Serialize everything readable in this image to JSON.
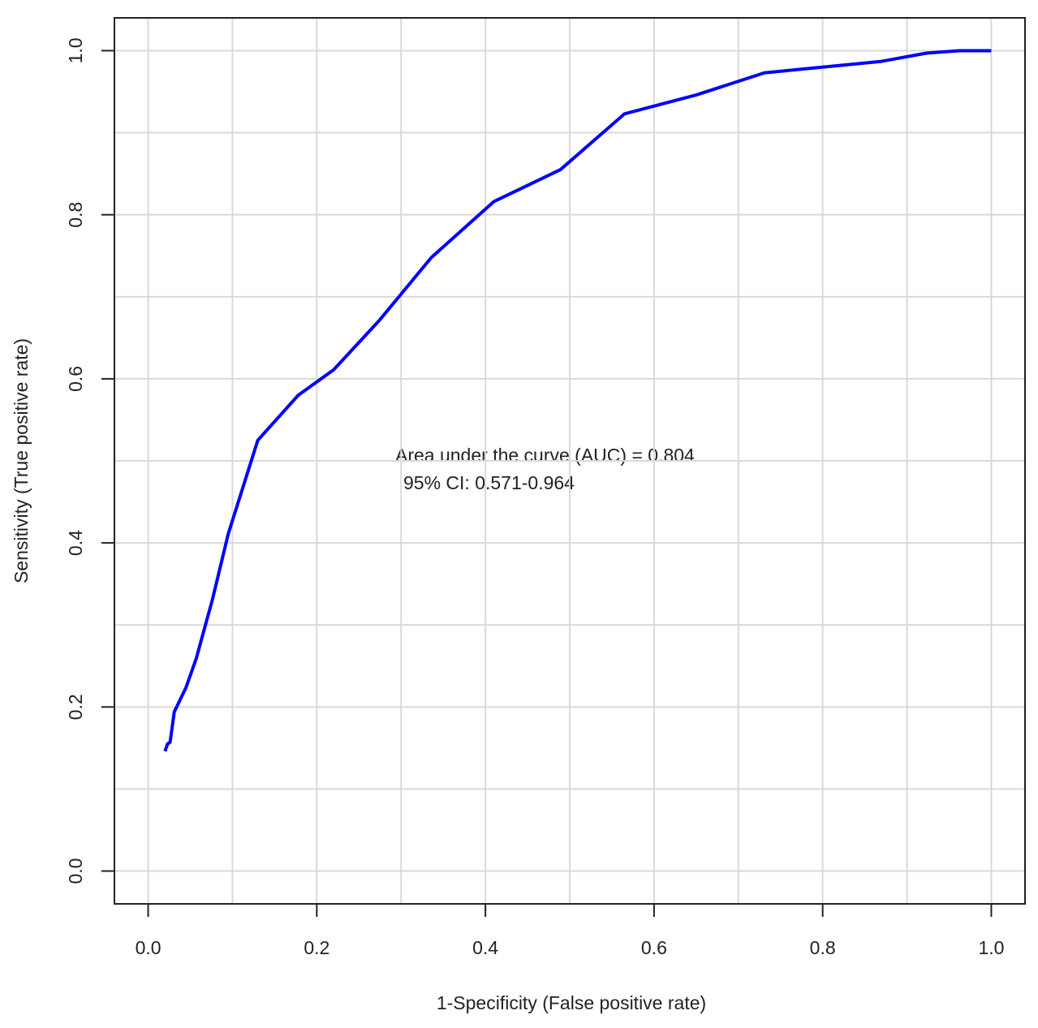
{
  "chart_data": {
    "type": "line",
    "xlabel": "1-Specificity (False positive rate)",
    "ylabel": "Sensitivity (True positive rate)",
    "annotations": [
      "Area under the curve (AUC) = 0.804",
      "95% CI: 0.571-0.964"
    ],
    "x": [
      0.02,
      0.023,
      0.026,
      0.031,
      0.045,
      0.057,
      0.076,
      0.095,
      0.13,
      0.178,
      0.22,
      0.274,
      0.336,
      0.41,
      0.489,
      0.565,
      0.65,
      0.731,
      0.87,
      0.923,
      0.962,
      1.0
    ],
    "values": [
      0.146,
      0.155,
      0.157,
      0.194,
      0.224,
      0.259,
      0.33,
      0.411,
      0.525,
      0.58,
      0.611,
      0.671,
      0.748,
      0.816,
      0.855,
      0.923,
      0.946,
      0.973,
      0.987,
      0.997,
      1.0,
      1.0
    ],
    "color": "#0000ff",
    "xlim": [
      -0.04,
      1.04
    ],
    "ylim": [
      -0.04,
      1.04
    ],
    "xticks": [
      {
        "value": 0,
        "label": "0.0"
      },
      0.2,
      0.4,
      0.6,
      0.8,
      {
        "value": 1,
        "label": "1.0"
      }
    ],
    "yticks": [
      {
        "value": 0,
        "label": "0.0"
      },
      0.2,
      0.4,
      0.6,
      0.8,
      {
        "value": 1,
        "label": "1.0"
      }
    ],
    "xgrid": [
      0,
      0.1,
      0.2,
      0.3,
      0.4,
      0.5,
      0.6,
      0.7,
      0.8,
      0.9,
      1
    ],
    "ygrid": [
      0,
      0.1,
      0.2,
      0.3,
      0.4,
      0.5,
      0.6,
      0.7,
      0.8,
      0.9,
      1
    ],
    "grid": true
  }
}
